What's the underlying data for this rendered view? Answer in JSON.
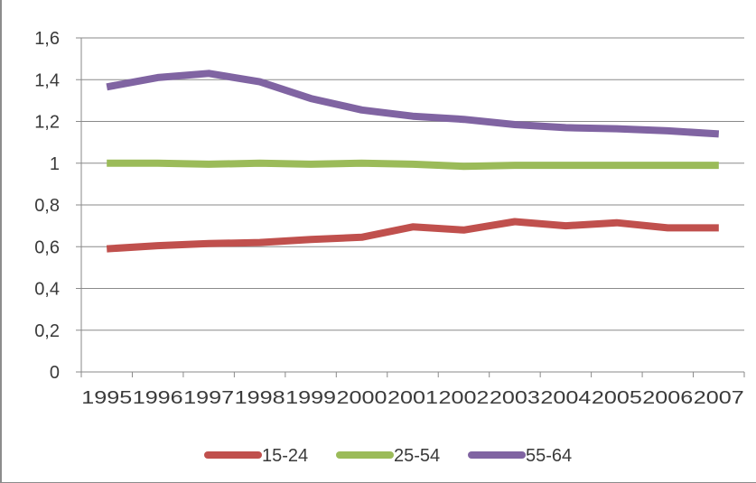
{
  "chart_data": {
    "type": "line",
    "title": "",
    "xlabel": "",
    "ylabel": "",
    "x": [
      "1995",
      "1996",
      "1997",
      "1998",
      "1999",
      "2000",
      "2001",
      "2002",
      "2003",
      "2004",
      "2005",
      "2006",
      "2007"
    ],
    "yticks": [
      "0",
      "0,2",
      "0,4",
      "0,6",
      "0,8",
      "1",
      "1,2",
      "1,4",
      "1,6"
    ],
    "ylim": [
      0,
      1.6
    ],
    "grid": "horizontal",
    "legend_position": "bottom",
    "series": [
      {
        "name": "15-24",
        "color": "#c0504d",
        "values": [
          0.59,
          0.605,
          0.615,
          0.62,
          0.635,
          0.645,
          0.695,
          0.68,
          0.72,
          0.7,
          0.715,
          0.69,
          0.69
        ]
      },
      {
        "name": "25-54",
        "color": "#9bbb59",
        "values": [
          1.0,
          1.0,
          0.995,
          1.0,
          0.995,
          1.0,
          0.995,
          0.985,
          0.99,
          0.99,
          0.99,
          0.99,
          0.99
        ]
      },
      {
        "name": "55-64",
        "color": "#8064a2",
        "values": [
          1.365,
          1.41,
          1.43,
          1.39,
          1.31,
          1.255,
          1.225,
          1.21,
          1.185,
          1.17,
          1.165,
          1.155,
          1.14
        ]
      }
    ]
  }
}
